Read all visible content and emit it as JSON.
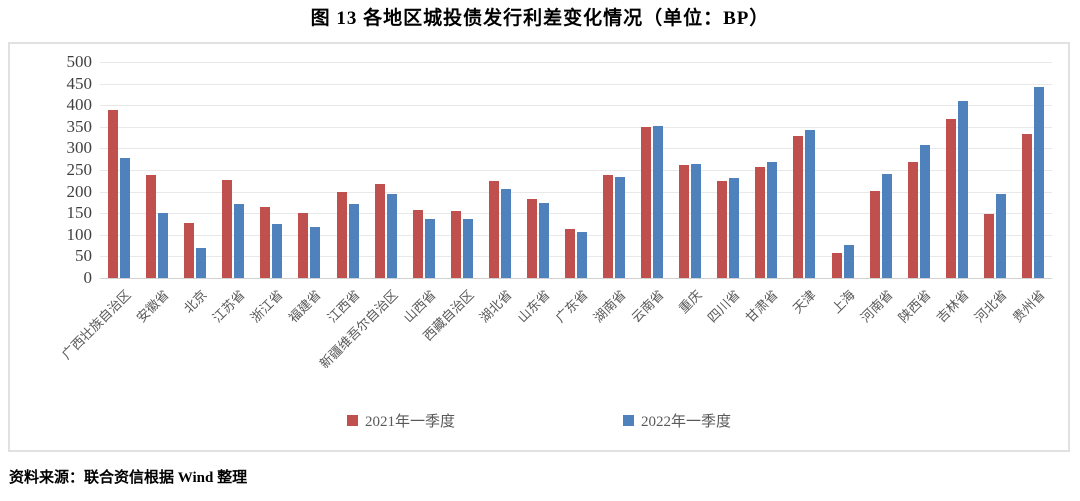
{
  "title": "图 13  各地区城投债发行利差变化情况（单位：BP）",
  "source": "资料来源：联合资信根据 Wind 整理",
  "colors": {
    "series_2021": "#C0504D",
    "series_2022": "#4F81BD",
    "gridline": "#E8E8E8",
    "axis_text": "#404040",
    "category_text": "#595959",
    "frame_border": "#E1E1E1"
  },
  "chart_data": {
    "type": "bar",
    "title": "图 13  各地区城投债发行利差变化情况（单位：BP）",
    "categories": [
      "广西壮族自治区",
      "安徽省",
      "北京",
      "江苏省",
      "浙江省",
      "福建省",
      "江西省",
      "新疆维吾尔自治区",
      "山西省",
      "西藏自治区",
      "湖北省",
      "山东省",
      "广东省",
      "湖南省",
      "云南省",
      "重庆",
      "四川省",
      "甘肃省",
      "天津",
      "上海",
      "河南省",
      "陕西省",
      "吉林省",
      "河北省",
      "贵州省"
    ],
    "series": [
      {
        "name": "2021年一季度",
        "color": "#C0504D",
        "values": [
          389,
          238,
          127,
          227,
          165,
          150,
          198,
          218,
          157,
          154,
          225,
          182,
          113,
          238,
          349,
          261,
          225,
          258,
          328,
          57,
          202,
          269,
          367,
          149,
          334
        ]
      },
      {
        "name": "2022年一季度",
        "color": "#4F81BD",
        "values": [
          277,
          150,
          70,
          172,
          126,
          119,
          172,
          195,
          137,
          137,
          206,
          173,
          106,
          233,
          351,
          263,
          232,
          269,
          343,
          76,
          240,
          308,
          409,
          194,
          441
        ]
      }
    ],
    "xlabel": "",
    "ylabel": "",
    "ylim": [
      0,
      500
    ],
    "ytick_step": 50,
    "grid": true,
    "legend_position": "bottom",
    "x_label_rotation": -45
  }
}
